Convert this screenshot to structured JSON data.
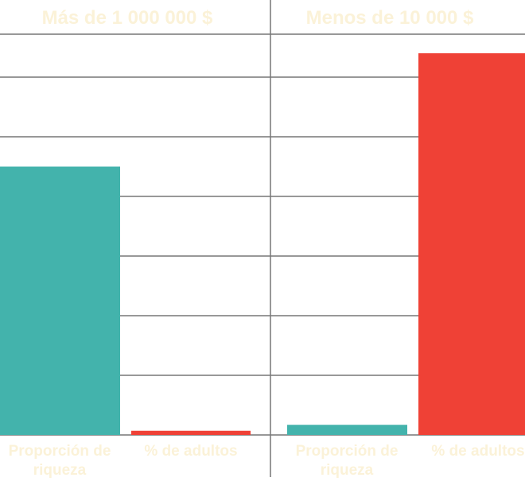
{
  "chart_data": [
    {
      "type": "bar",
      "title": "Más de 1 000 000 $",
      "categories": [
        "Proporción de riqueza",
        "% de adultos"
      ],
      "values": [
        45,
        0.7
      ],
      "colors": [
        "#43b3ac",
        "#ef4136"
      ],
      "ylim": [
        0,
        67.2
      ],
      "yticks": [
        0,
        10,
        20,
        30,
        40,
        50,
        60
      ],
      "grid": true
    },
    {
      "type": "bar",
      "title": "Menos de 10 000 $",
      "categories": [
        "Proporción de riqueza",
        "% de adultos"
      ],
      "values": [
        1.7,
        64
      ],
      "colors": [
        "#43b3ac",
        "#ef4136"
      ],
      "ylim": [
        0,
        67.2
      ],
      "yticks": [
        0,
        10,
        20,
        30,
        40,
        50,
        60
      ],
      "grid": true
    }
  ]
}
